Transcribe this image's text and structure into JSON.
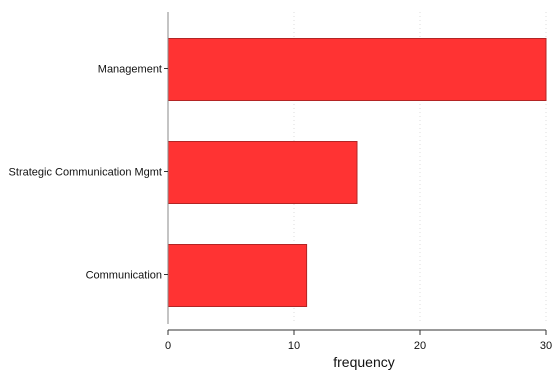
{
  "chart_data": {
    "type": "bar",
    "orientation": "horizontal",
    "categories": [
      "Management",
      "Strategic Communication Mgmt",
      "Communication"
    ],
    "values": [
      30,
      15,
      11
    ],
    "xlabel": "frequency",
    "ylabel": "",
    "xlim": [
      0,
      30
    ],
    "xticks": [
      "0",
      "10",
      "20",
      "30"
    ],
    "grid": "vertical dotted",
    "colors": {
      "bar_fill": "#ff3333",
      "bar_stroke": "#b32424",
      "grid": "#dcdcdc",
      "axis": "#888888"
    }
  }
}
